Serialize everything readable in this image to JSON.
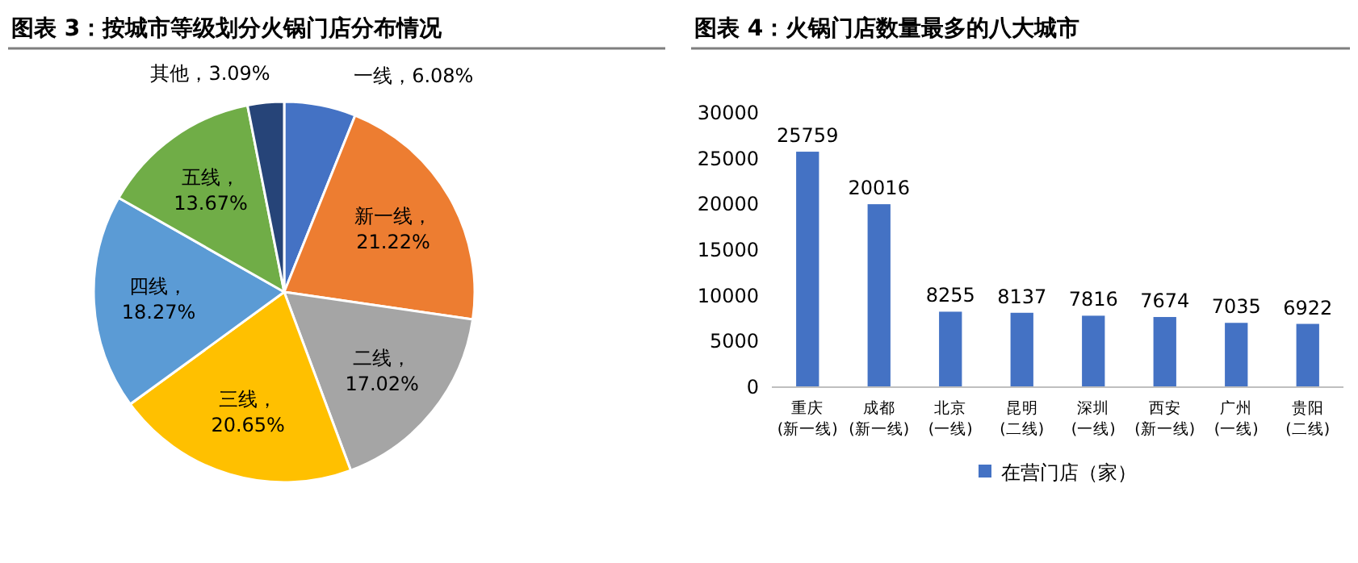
{
  "chart_data": [
    {
      "type": "pie",
      "title": "图表 3：按城市等级划分火锅门店分布情况",
      "categories": [
        "一线",
        "新一线",
        "二线",
        "三线",
        "四线",
        "五线",
        "其他"
      ],
      "values": [
        6.08,
        21.22,
        17.02,
        20.65,
        18.27,
        13.67,
        3.09
      ],
      "colors": [
        "#4472c4",
        "#ed7d31",
        "#a5a5a5",
        "#ffc000",
        "#5b9bd5",
        "#70ad47",
        "#264478"
      ],
      "value_labels": [
        "，6.08%",
        "，21.22%",
        "，17.02%",
        "，20.65%",
        "，18.27%",
        "，13.67%",
        "，3.09%"
      ],
      "legend": false
    },
    {
      "type": "bar",
      "title": "图表 4：火锅门店数量最多的八大城市",
      "categories": [
        "重庆\n(新一线)",
        "成都\n(新一线)",
        "北京\n(一线)",
        "昆明\n(二线)",
        "深圳\n(一线)",
        "西安\n(新一线)",
        "广州\n(一线)",
        "贵阳\n(二线)"
      ],
      "series": [
        {
          "name": "在营门店（家）",
          "color": "#4472c4",
          "values": [
            25759,
            20016,
            8255,
            8137,
            7816,
            7674,
            7035,
            6922
          ]
        }
      ],
      "ylim": [
        0,
        30000
      ],
      "yticks": [
        0,
        5000,
        10000,
        15000,
        20000,
        25000,
        30000
      ],
      "data_labels": true,
      "legend": "bottom",
      "grid": false
    }
  ]
}
